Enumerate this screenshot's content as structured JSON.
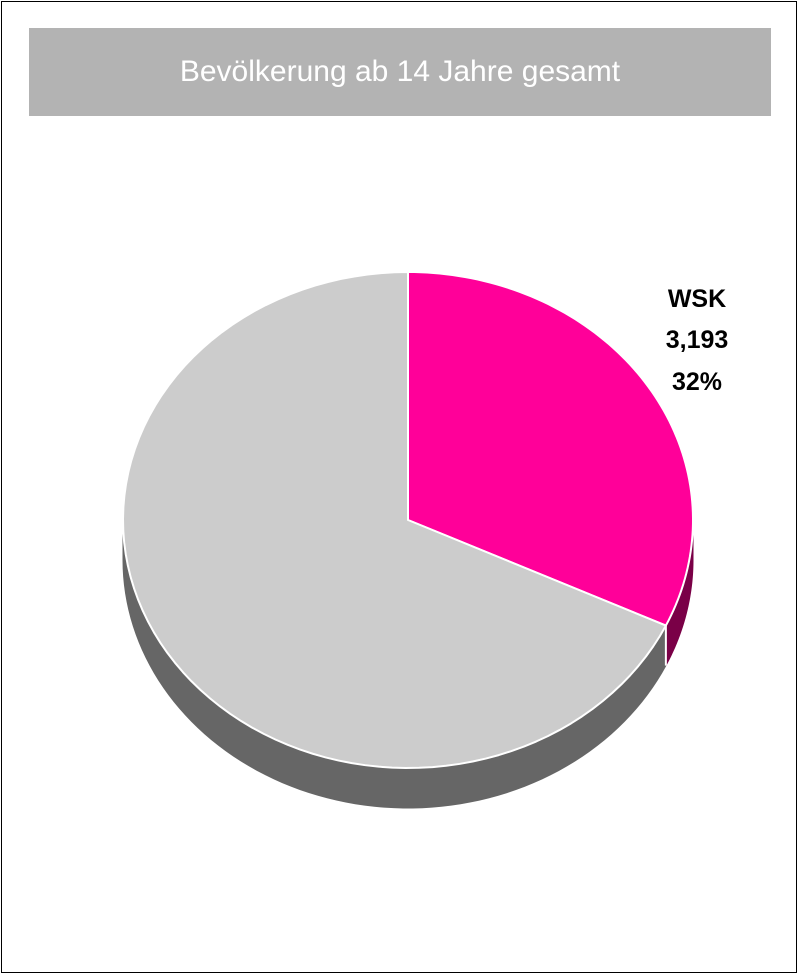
{
  "title": "Bevölkerung ab 14 Jahre gesamt",
  "colors": {
    "title_bar": "#b3b3b3",
    "title_text": "#ffffff",
    "wsk_top": "#ff0099",
    "wsk_side": "#7a0047",
    "rest_top": "#cccccc",
    "rest_side": "#666666",
    "edge": "#ffffff"
  },
  "chart_data": {
    "type": "pie",
    "style": "3d",
    "slices": [
      {
        "label": "WSK",
        "value_text": "3,193",
        "percent": 32,
        "percent_text": "32%",
        "color": "#ff0099"
      },
      {
        "label": "",
        "value_text": "",
        "percent": 68,
        "percent_text": "",
        "color": "#cccccc"
      }
    ],
    "start": "12 o'clock",
    "direction": "clockwise",
    "legend": "none"
  }
}
